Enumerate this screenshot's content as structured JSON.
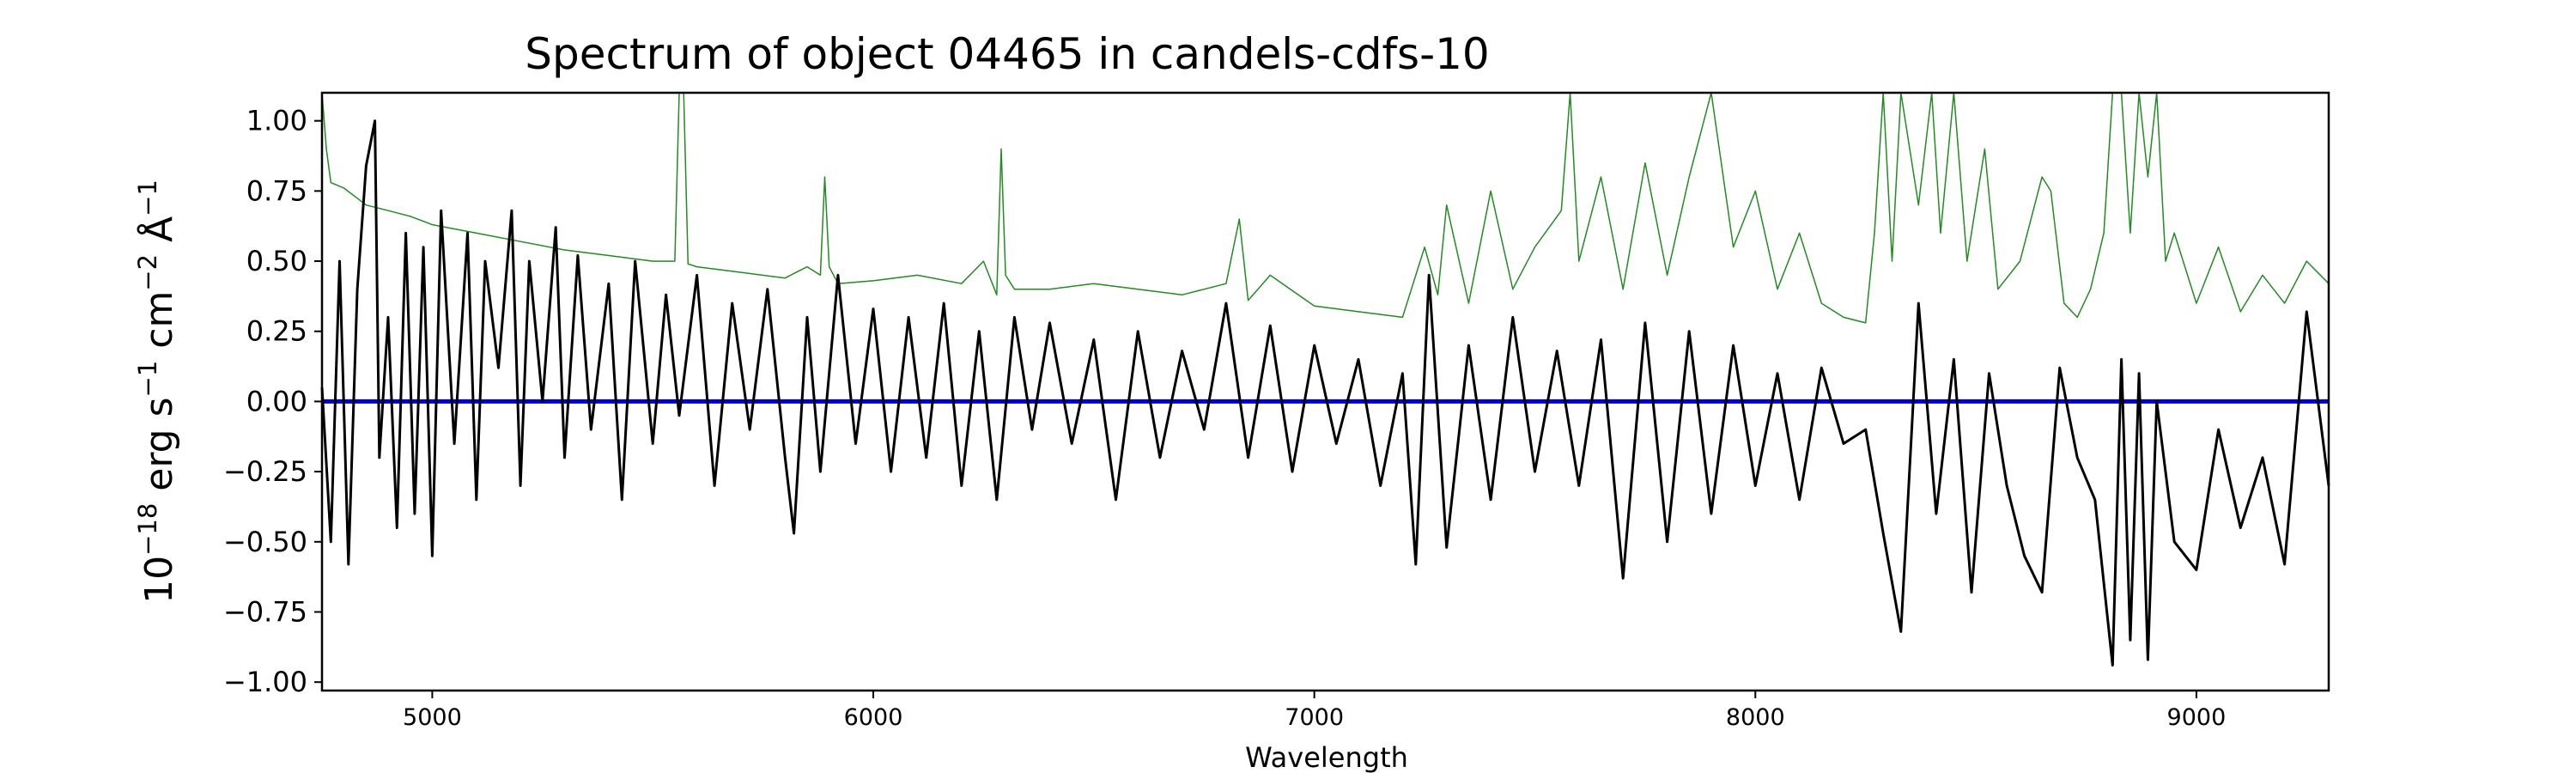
{
  "chart_data": {
    "type": "line",
    "title": "Spectrum of object 04465 in candels-cdfs-10",
    "xlabel": "Wavelength",
    "ylabel": {
      "base": "10",
      "exp": "−18",
      "unit1": " erg s",
      "exp1": "−1",
      "unit2": " cm",
      "exp2": "−2",
      "unit3": " Å",
      "exp3": "−1"
    },
    "xlim": [
      4750,
      9300
    ],
    "ylim": [
      -1.03,
      1.1
    ],
    "xticks": [
      5000,
      6000,
      7000,
      8000,
      9000
    ],
    "xtick_labels": [
      "5000",
      "6000",
      "7000",
      "8000",
      "9000"
    ],
    "yticks": [
      -1.0,
      -0.75,
      -0.5,
      -0.25,
      0.0,
      0.25,
      0.5,
      0.75,
      1.0
    ],
    "ytick_labels": [
      "−1.00",
      "−0.75",
      "−0.50",
      "−0.25",
      "0.00",
      "0.25",
      "0.50",
      "0.75",
      "1.00"
    ],
    "grid": false,
    "colors": {
      "flux": "#000000",
      "error": "#228b22",
      "zero": "#0000cd"
    },
    "series": [
      {
        "role": "flux",
        "x": [
          4750,
          4770,
          4790,
          4810,
          4830,
          4850,
          4870,
          4880,
          4900,
          4920,
          4940,
          4960,
          4980,
          5000,
          5020,
          5050,
          5080,
          5100,
          5120,
          5150,
          5180,
          5200,
          5220,
          5250,
          5280,
          5300,
          5330,
          5360,
          5400,
          5430,
          5460,
          5500,
          5530,
          5560,
          5600,
          5640,
          5680,
          5720,
          5760,
          5800,
          5820,
          5850,
          5880,
          5920,
          5960,
          6000,
          6040,
          6080,
          6120,
          6160,
          6200,
          6240,
          6280,
          6320,
          6360,
          6400,
          6450,
          6500,
          6550,
          6600,
          6650,
          6700,
          6750,
          6800,
          6850,
          6900,
          6950,
          7000,
          7050,
          7100,
          7150,
          7200,
          7230,
          7260,
          7300,
          7350,
          7400,
          7450,
          7500,
          7550,
          7600,
          7650,
          7700,
          7750,
          7800,
          7850,
          7900,
          7950,
          8000,
          8050,
          8100,
          8150,
          8200,
          8250,
          8290,
          8330,
          8370,
          8410,
          8450,
          8490,
          8530,
          8570,
          8610,
          8650,
          8690,
          8730,
          8770,
          8810,
          8830,
          8850,
          8870,
          8890,
          8910,
          8950,
          9000,
          9050,
          9100,
          9150,
          9200,
          9250,
          9300
        ],
        "y": [
          0.05,
          -0.5,
          0.5,
          -0.58,
          0.4,
          0.84,
          1.0,
          -0.2,
          0.3,
          -0.45,
          0.6,
          -0.4,
          0.55,
          -0.55,
          0.68,
          -0.15,
          0.6,
          -0.35,
          0.5,
          0.12,
          0.68,
          -0.3,
          0.5,
          0.0,
          0.62,
          -0.2,
          0.52,
          -0.1,
          0.42,
          -0.35,
          0.5,
          -0.15,
          0.38,
          -0.05,
          0.45,
          -0.3,
          0.35,
          -0.1,
          0.4,
          -0.2,
          -0.47,
          0.3,
          -0.25,
          0.45,
          -0.15,
          0.33,
          -0.25,
          0.3,
          -0.2,
          0.35,
          -0.3,
          0.25,
          -0.35,
          0.3,
          -0.1,
          0.28,
          -0.15,
          0.22,
          -0.35,
          0.25,
          -0.2,
          0.18,
          -0.1,
          0.35,
          -0.2,
          0.27,
          -0.25,
          0.2,
          -0.15,
          0.15,
          -0.3,
          0.1,
          -0.58,
          0.45,
          -0.52,
          0.2,
          -0.35,
          0.3,
          -0.25,
          0.18,
          -0.3,
          0.22,
          -0.63,
          0.28,
          -0.5,
          0.25,
          -0.4,
          0.2,
          -0.3,
          0.1,
          -0.35,
          0.12,
          -0.15,
          -0.1,
          -0.47,
          -0.82,
          0.35,
          -0.4,
          0.15,
          -0.68,
          0.1,
          -0.3,
          -0.55,
          -0.68,
          0.12,
          -0.2,
          -0.35,
          -0.94,
          0.15,
          -0.85,
          0.1,
          -0.92,
          0.0,
          -0.5,
          -0.6,
          -0.1,
          -0.45,
          -0.2,
          -0.58,
          0.32,
          -0.3
        ]
      },
      {
        "role": "error",
        "x": [
          4750,
          4760,
          4770,
          4800,
          4850,
          4900,
          4950,
          5000,
          5100,
          5200,
          5300,
          5400,
          5500,
          5550,
          5560,
          5570,
          5580,
          5600,
          5700,
          5800,
          5850,
          5880,
          5890,
          5900,
          5920,
          6000,
          6100,
          6200,
          6250,
          6280,
          6290,
          6300,
          6320,
          6400,
          6500,
          6600,
          6700,
          6800,
          6830,
          6850,
          6900,
          7000,
          7100,
          7200,
          7250,
          7280,
          7300,
          7350,
          7400,
          7450,
          7500,
          7560,
          7580,
          7600,
          7650,
          7700,
          7750,
          7800,
          7850,
          7900,
          7950,
          8000,
          8050,
          8100,
          8150,
          8200,
          8250,
          8270,
          8290,
          8310,
          8330,
          8370,
          8400,
          8420,
          8450,
          8480,
          8520,
          8550,
          8600,
          8650,
          8670,
          8700,
          8730,
          8760,
          8790,
          8810,
          8830,
          8850,
          8870,
          8890,
          8910,
          8930,
          8950,
          9000,
          9050,
          9100,
          9150,
          9200,
          9250,
          9300
        ],
        "y": [
          1.1,
          0.9,
          0.78,
          0.76,
          0.7,
          0.68,
          0.66,
          0.63,
          0.6,
          0.57,
          0.54,
          0.52,
          0.5,
          0.5,
          1.1,
          1.1,
          0.49,
          0.48,
          0.46,
          0.44,
          0.48,
          0.45,
          0.8,
          0.48,
          0.42,
          0.43,
          0.45,
          0.42,
          0.5,
          0.38,
          0.9,
          0.45,
          0.4,
          0.4,
          0.42,
          0.4,
          0.38,
          0.42,
          0.65,
          0.36,
          0.45,
          0.34,
          0.32,
          0.3,
          0.55,
          0.38,
          0.7,
          0.35,
          0.75,
          0.4,
          0.55,
          0.68,
          1.1,
          0.5,
          0.8,
          0.4,
          0.85,
          0.45,
          0.8,
          1.1,
          0.55,
          0.75,
          0.4,
          0.6,
          0.35,
          0.3,
          0.28,
          0.6,
          1.1,
          0.5,
          1.1,
          0.7,
          1.1,
          0.6,
          1.1,
          0.5,
          0.9,
          0.4,
          0.5,
          0.8,
          0.75,
          0.35,
          0.3,
          0.4,
          0.6,
          1.1,
          1.1,
          0.6,
          1.1,
          0.8,
          1.1,
          0.5,
          0.6,
          0.35,
          0.55,
          0.32,
          0.45,
          0.35,
          0.5,
          0.42
        ]
      },
      {
        "role": "zero",
        "x": [
          4750,
          9300
        ],
        "y": [
          0.0,
          0.0
        ]
      }
    ]
  }
}
